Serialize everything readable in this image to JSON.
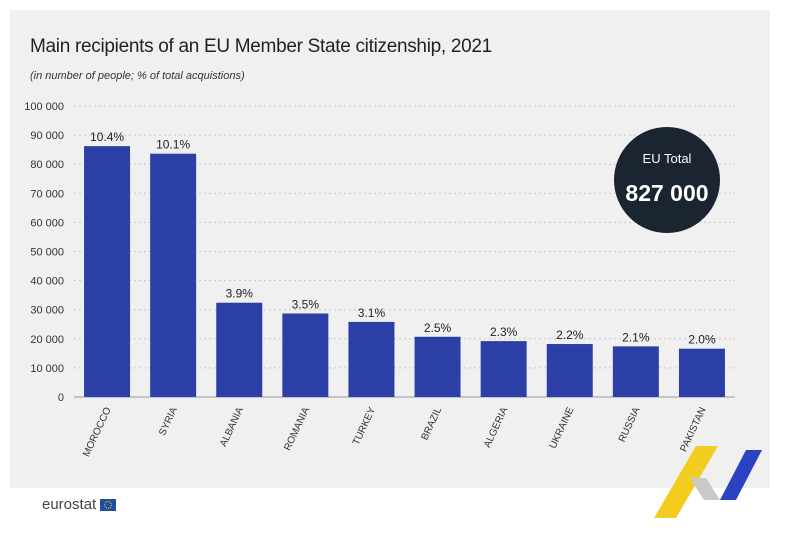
{
  "header": {
    "title": "Main recipients of an EU Member State citizenship, 2021",
    "subtitle": "(in number of people; % of total acquistions)"
  },
  "total_badge": {
    "label": "EU Total",
    "value": "827 000"
  },
  "footer": {
    "logo_text": "eurostat"
  },
  "colors": {
    "bar": "#2b3fa6",
    "panel": "#f0f0f0",
    "badge": "#1b2431",
    "grid": "#c8c8c8"
  },
  "chart_data": {
    "type": "bar",
    "categories": [
      "MOROCCO",
      "SYRIA",
      "ALBANIA",
      "ROMANIA",
      "TURKEY",
      "BRAZIL",
      "ALGERIA",
      "UKRAINE",
      "RUSSIA",
      "PAKISTAN"
    ],
    "values": [
      86200,
      83600,
      32400,
      28700,
      25800,
      20700,
      19200,
      18200,
      17400,
      16600
    ],
    "data_labels": [
      "10.4%",
      "10.1%",
      "3.9%",
      "3.5%",
      "3.1%",
      "2.5%",
      "2.3%",
      "2.2%",
      "2.1%",
      "2.0%"
    ],
    "yticks": [
      0,
      10000,
      20000,
      30000,
      40000,
      50000,
      60000,
      70000,
      80000,
      90000,
      100000
    ],
    "ytick_labels": [
      "0",
      "10 000",
      "20 000",
      "30 000",
      "40 000",
      "50 000",
      "60 000",
      "70 000",
      "80 000",
      "90 000",
      "100 000"
    ],
    "ylim": [
      0,
      100000
    ],
    "grid": true,
    "title": "Main recipients of an EU Member State citizenship, 2021",
    "xlabel": "",
    "ylabel": ""
  }
}
